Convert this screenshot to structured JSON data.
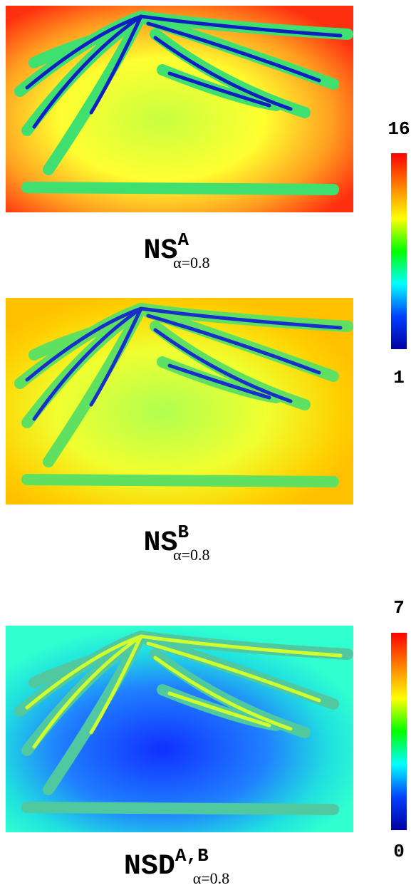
{
  "panels": [
    {
      "label": {
        "base": "NS",
        "sup": "A",
        "sub": "α=0.8"
      }
    },
    {
      "label": {
        "base": "NS",
        "sup": "B",
        "sub": "α=0.8"
      }
    },
    {
      "label": {
        "base": "NSD",
        "sup": "A,B",
        "sub": "α=0.8"
      }
    }
  ],
  "colorbars": [
    {
      "max": 16,
      "min": 1
    },
    {
      "max": 7,
      "min": 0
    }
  ]
}
